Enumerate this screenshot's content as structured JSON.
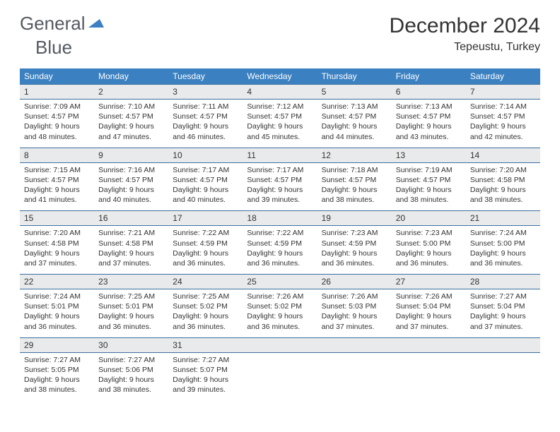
{
  "logo": {
    "text1": "General",
    "text2": "Blue"
  },
  "title": "December 2024",
  "location": "Tepeustu, Turkey",
  "colors": {
    "header_bg": "#3b81c2",
    "header_text": "#ffffff",
    "date_bg": "#e9eaeb",
    "border": "#3b6fa0",
    "text": "#333333",
    "logo_gray": "#555961",
    "logo_blue": "#3b7fc4",
    "page_bg": "#ffffff"
  },
  "dow": [
    "Sunday",
    "Monday",
    "Tuesday",
    "Wednesday",
    "Thursday",
    "Friday",
    "Saturday"
  ],
  "weeks": [
    {
      "dates": [
        "1",
        "2",
        "3",
        "4",
        "5",
        "6",
        "7"
      ],
      "cells": [
        {
          "sunrise": "Sunrise: 7:09 AM",
          "sunset": "Sunset: 4:57 PM",
          "day1": "Daylight: 9 hours",
          "day2": "and 48 minutes."
        },
        {
          "sunrise": "Sunrise: 7:10 AM",
          "sunset": "Sunset: 4:57 PM",
          "day1": "Daylight: 9 hours",
          "day2": "and 47 minutes."
        },
        {
          "sunrise": "Sunrise: 7:11 AM",
          "sunset": "Sunset: 4:57 PM",
          "day1": "Daylight: 9 hours",
          "day2": "and 46 minutes."
        },
        {
          "sunrise": "Sunrise: 7:12 AM",
          "sunset": "Sunset: 4:57 PM",
          "day1": "Daylight: 9 hours",
          "day2": "and 45 minutes."
        },
        {
          "sunrise": "Sunrise: 7:13 AM",
          "sunset": "Sunset: 4:57 PM",
          "day1": "Daylight: 9 hours",
          "day2": "and 44 minutes."
        },
        {
          "sunrise": "Sunrise: 7:13 AM",
          "sunset": "Sunset: 4:57 PM",
          "day1": "Daylight: 9 hours",
          "day2": "and 43 minutes."
        },
        {
          "sunrise": "Sunrise: 7:14 AM",
          "sunset": "Sunset: 4:57 PM",
          "day1": "Daylight: 9 hours",
          "day2": "and 42 minutes."
        }
      ]
    },
    {
      "dates": [
        "8",
        "9",
        "10",
        "11",
        "12",
        "13",
        "14"
      ],
      "cells": [
        {
          "sunrise": "Sunrise: 7:15 AM",
          "sunset": "Sunset: 4:57 PM",
          "day1": "Daylight: 9 hours",
          "day2": "and 41 minutes."
        },
        {
          "sunrise": "Sunrise: 7:16 AM",
          "sunset": "Sunset: 4:57 PM",
          "day1": "Daylight: 9 hours",
          "day2": "and 40 minutes."
        },
        {
          "sunrise": "Sunrise: 7:17 AM",
          "sunset": "Sunset: 4:57 PM",
          "day1": "Daylight: 9 hours",
          "day2": "and 40 minutes."
        },
        {
          "sunrise": "Sunrise: 7:17 AM",
          "sunset": "Sunset: 4:57 PM",
          "day1": "Daylight: 9 hours",
          "day2": "and 39 minutes."
        },
        {
          "sunrise": "Sunrise: 7:18 AM",
          "sunset": "Sunset: 4:57 PM",
          "day1": "Daylight: 9 hours",
          "day2": "and 38 minutes."
        },
        {
          "sunrise": "Sunrise: 7:19 AM",
          "sunset": "Sunset: 4:57 PM",
          "day1": "Daylight: 9 hours",
          "day2": "and 38 minutes."
        },
        {
          "sunrise": "Sunrise: 7:20 AM",
          "sunset": "Sunset: 4:58 PM",
          "day1": "Daylight: 9 hours",
          "day2": "and 38 minutes."
        }
      ]
    },
    {
      "dates": [
        "15",
        "16",
        "17",
        "18",
        "19",
        "20",
        "21"
      ],
      "cells": [
        {
          "sunrise": "Sunrise: 7:20 AM",
          "sunset": "Sunset: 4:58 PM",
          "day1": "Daylight: 9 hours",
          "day2": "and 37 minutes."
        },
        {
          "sunrise": "Sunrise: 7:21 AM",
          "sunset": "Sunset: 4:58 PM",
          "day1": "Daylight: 9 hours",
          "day2": "and 37 minutes."
        },
        {
          "sunrise": "Sunrise: 7:22 AM",
          "sunset": "Sunset: 4:59 PM",
          "day1": "Daylight: 9 hours",
          "day2": "and 36 minutes."
        },
        {
          "sunrise": "Sunrise: 7:22 AM",
          "sunset": "Sunset: 4:59 PM",
          "day1": "Daylight: 9 hours",
          "day2": "and 36 minutes."
        },
        {
          "sunrise": "Sunrise: 7:23 AM",
          "sunset": "Sunset: 4:59 PM",
          "day1": "Daylight: 9 hours",
          "day2": "and 36 minutes."
        },
        {
          "sunrise": "Sunrise: 7:23 AM",
          "sunset": "Sunset: 5:00 PM",
          "day1": "Daylight: 9 hours",
          "day2": "and 36 minutes."
        },
        {
          "sunrise": "Sunrise: 7:24 AM",
          "sunset": "Sunset: 5:00 PM",
          "day1": "Daylight: 9 hours",
          "day2": "and 36 minutes."
        }
      ]
    },
    {
      "dates": [
        "22",
        "23",
        "24",
        "25",
        "26",
        "27",
        "28"
      ],
      "cells": [
        {
          "sunrise": "Sunrise: 7:24 AM",
          "sunset": "Sunset: 5:01 PM",
          "day1": "Daylight: 9 hours",
          "day2": "and 36 minutes."
        },
        {
          "sunrise": "Sunrise: 7:25 AM",
          "sunset": "Sunset: 5:01 PM",
          "day1": "Daylight: 9 hours",
          "day2": "and 36 minutes."
        },
        {
          "sunrise": "Sunrise: 7:25 AM",
          "sunset": "Sunset: 5:02 PM",
          "day1": "Daylight: 9 hours",
          "day2": "and 36 minutes."
        },
        {
          "sunrise": "Sunrise: 7:26 AM",
          "sunset": "Sunset: 5:02 PM",
          "day1": "Daylight: 9 hours",
          "day2": "and 36 minutes."
        },
        {
          "sunrise": "Sunrise: 7:26 AM",
          "sunset": "Sunset: 5:03 PM",
          "day1": "Daylight: 9 hours",
          "day2": "and 37 minutes."
        },
        {
          "sunrise": "Sunrise: 7:26 AM",
          "sunset": "Sunset: 5:04 PM",
          "day1": "Daylight: 9 hours",
          "day2": "and 37 minutes."
        },
        {
          "sunrise": "Sunrise: 7:27 AM",
          "sunset": "Sunset: 5:04 PM",
          "day1": "Daylight: 9 hours",
          "day2": "and 37 minutes."
        }
      ]
    },
    {
      "dates": [
        "29",
        "30",
        "31",
        "",
        "",
        "",
        ""
      ],
      "cells": [
        {
          "sunrise": "Sunrise: 7:27 AM",
          "sunset": "Sunset: 5:05 PM",
          "day1": "Daylight: 9 hours",
          "day2": "and 38 minutes."
        },
        {
          "sunrise": "Sunrise: 7:27 AM",
          "sunset": "Sunset: 5:06 PM",
          "day1": "Daylight: 9 hours",
          "day2": "and 38 minutes."
        },
        {
          "sunrise": "Sunrise: 7:27 AM",
          "sunset": "Sunset: 5:07 PM",
          "day1": "Daylight: 9 hours",
          "day2": "and 39 minutes."
        },
        null,
        null,
        null,
        null
      ]
    }
  ]
}
